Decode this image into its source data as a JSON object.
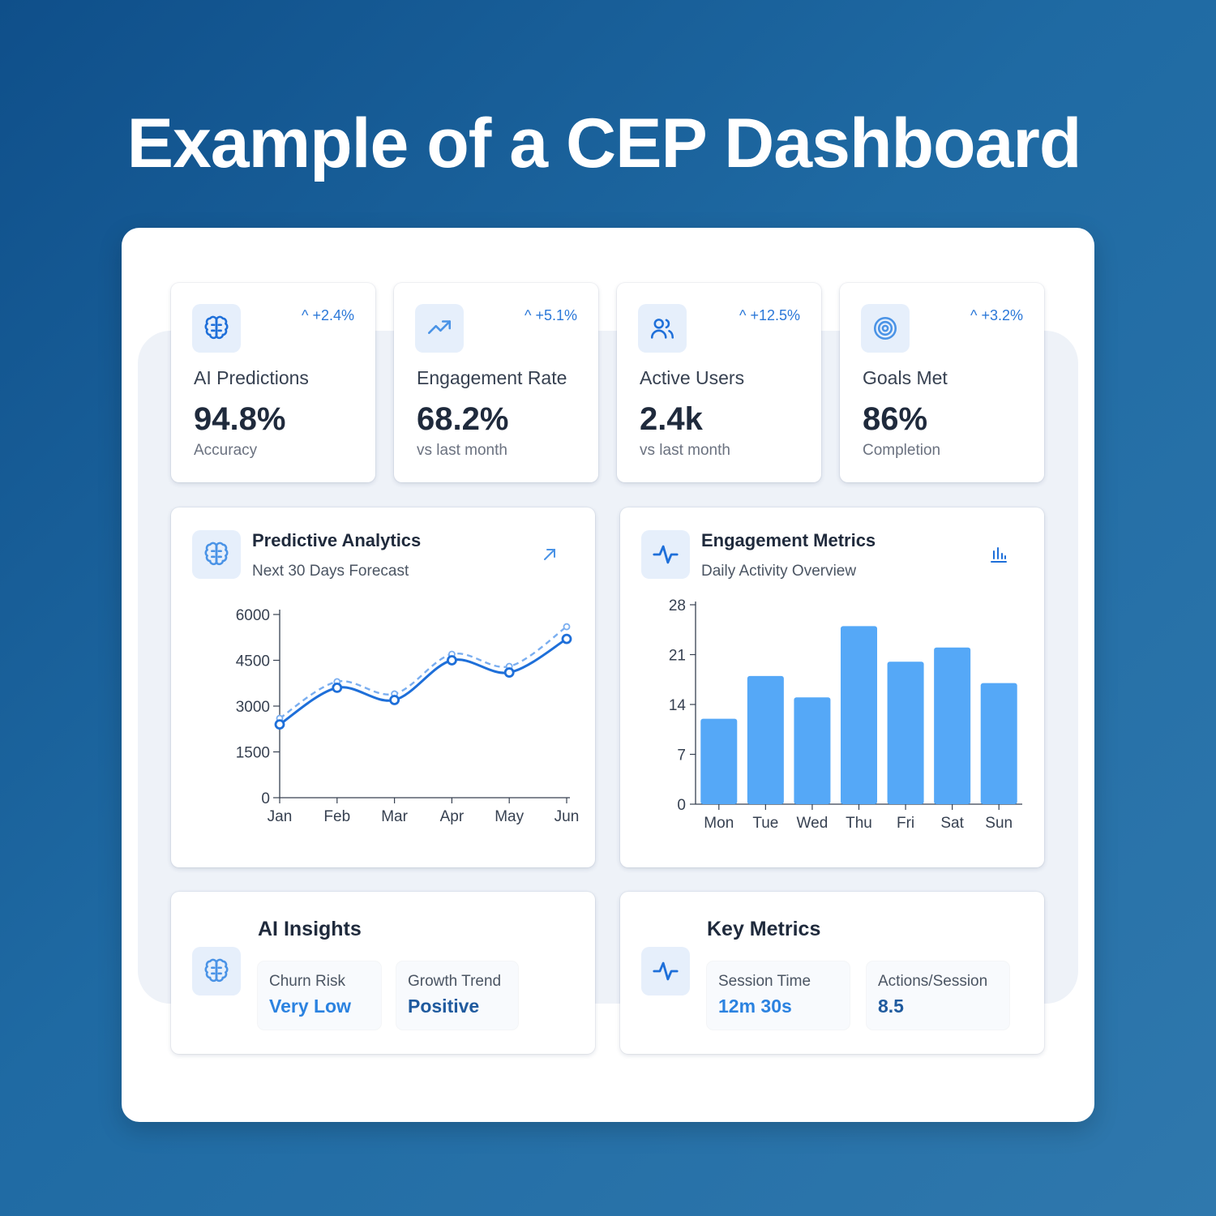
{
  "page": {
    "title": "Example of a CEP Dashboard"
  },
  "stats": [
    {
      "icon": "brain-icon",
      "change": "+2.4%",
      "label": "AI Predictions",
      "value": "94.8%",
      "sub": "Accuracy"
    },
    {
      "icon": "trending-up-icon",
      "change": "+5.1%",
      "label": "Engagement Rate",
      "value": "68.2%",
      "sub": "vs last month"
    },
    {
      "icon": "users-icon",
      "change": "+12.5%",
      "label": "Active Users",
      "value": "2.4k",
      "sub": "vs last month"
    },
    {
      "icon": "target-icon",
      "change": "+3.2%",
      "label": "Goals Met",
      "value": "86%",
      "sub": "Completion"
    }
  ],
  "predictive": {
    "title": "Predictive Analytics",
    "subtitle": "Next 30 Days Forecast",
    "icon": "brain-icon",
    "action_icon": "arrow-up-right-icon"
  },
  "engagement": {
    "title": "Engagement Metrics",
    "subtitle": "Daily Activity Overview",
    "icon": "activity-icon",
    "action_icon": "bar-chart-icon"
  },
  "chart_data": [
    {
      "type": "line",
      "categories": [
        "Jan",
        "Feb",
        "Mar",
        "Apr",
        "May",
        "Jun"
      ],
      "yticks": [
        0,
        1500,
        3000,
        4500,
        6000
      ],
      "ylim": [
        0,
        6000
      ],
      "series": [
        {
          "style": "solid",
          "color": "#1e6fd9",
          "values": [
            2400,
            3600,
            3200,
            4500,
            4100,
            5200
          ]
        },
        {
          "style": "dashed",
          "color": "#7aaef0",
          "values": [
            2600,
            3800,
            3400,
            4700,
            4300,
            5600
          ]
        }
      ]
    },
    {
      "type": "bar",
      "categories": [
        "Mon",
        "Tue",
        "Wed",
        "Thu",
        "Fri",
        "Sat",
        "Sun"
      ],
      "values": [
        12,
        18,
        15,
        25,
        20,
        22,
        17
      ],
      "yticks": [
        0,
        7,
        14,
        21,
        28
      ],
      "ylim": [
        0,
        28
      ],
      "color": "#55a8f7"
    }
  ],
  "ai_insights": {
    "title": "AI Insights",
    "icon": "brain-icon",
    "items": [
      {
        "label": "Churn Risk",
        "value": "Very Low"
      },
      {
        "label": "Growth Trend",
        "value": "Positive"
      }
    ]
  },
  "key_metrics": {
    "title": "Key Metrics",
    "icon": "activity-icon",
    "items": [
      {
        "label": "Session Time",
        "value": "12m 30s"
      },
      {
        "label": "Actions/Session",
        "value": "8.5"
      }
    ]
  },
  "colors": {
    "accent": "#2b78d8",
    "bar": "#55a8f7",
    "line": "#1e6fd9"
  }
}
